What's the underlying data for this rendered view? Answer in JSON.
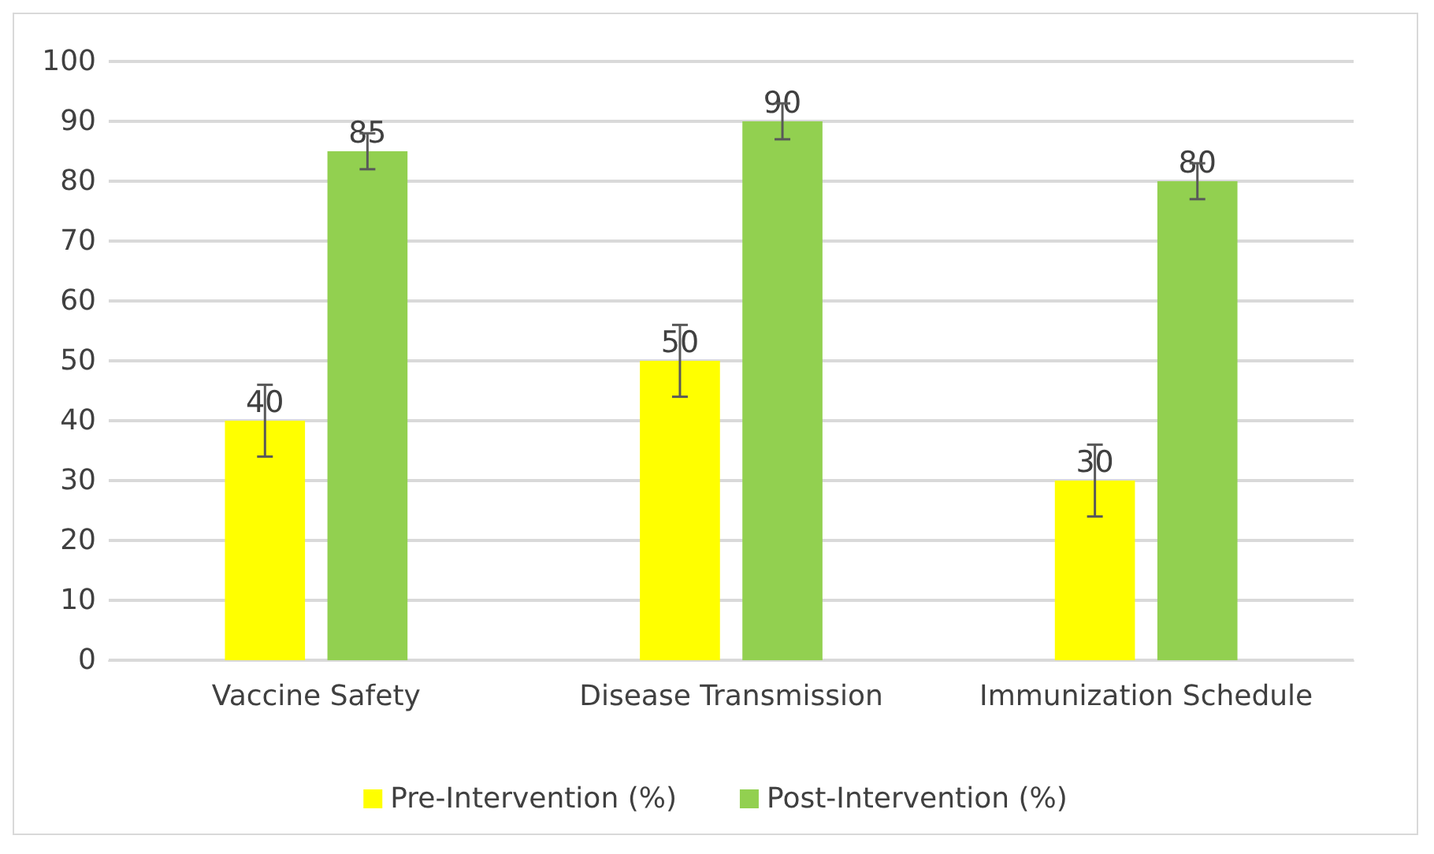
{
  "chart_data": {
    "type": "bar",
    "categories": [
      "Vaccine Safety",
      "Disease Transmission",
      "Immunization Schedule"
    ],
    "series": [
      {
        "name": "Pre-Intervention (%)",
        "color": "#ffff00",
        "values": [
          40,
          50,
          30
        ],
        "errors": [
          6,
          6,
          6
        ]
      },
      {
        "name": "Post-Intervention (%)",
        "color": "#92d050",
        "values": [
          85,
          90,
          80
        ],
        "errors": [
          3,
          3,
          3
        ]
      }
    ],
    "ylim": [
      0,
      100
    ],
    "yticks": [
      0,
      10,
      20,
      30,
      40,
      50,
      60,
      70,
      80,
      90,
      100
    ],
    "grid": "y",
    "legend": "bottom",
    "data_labels": true
  }
}
